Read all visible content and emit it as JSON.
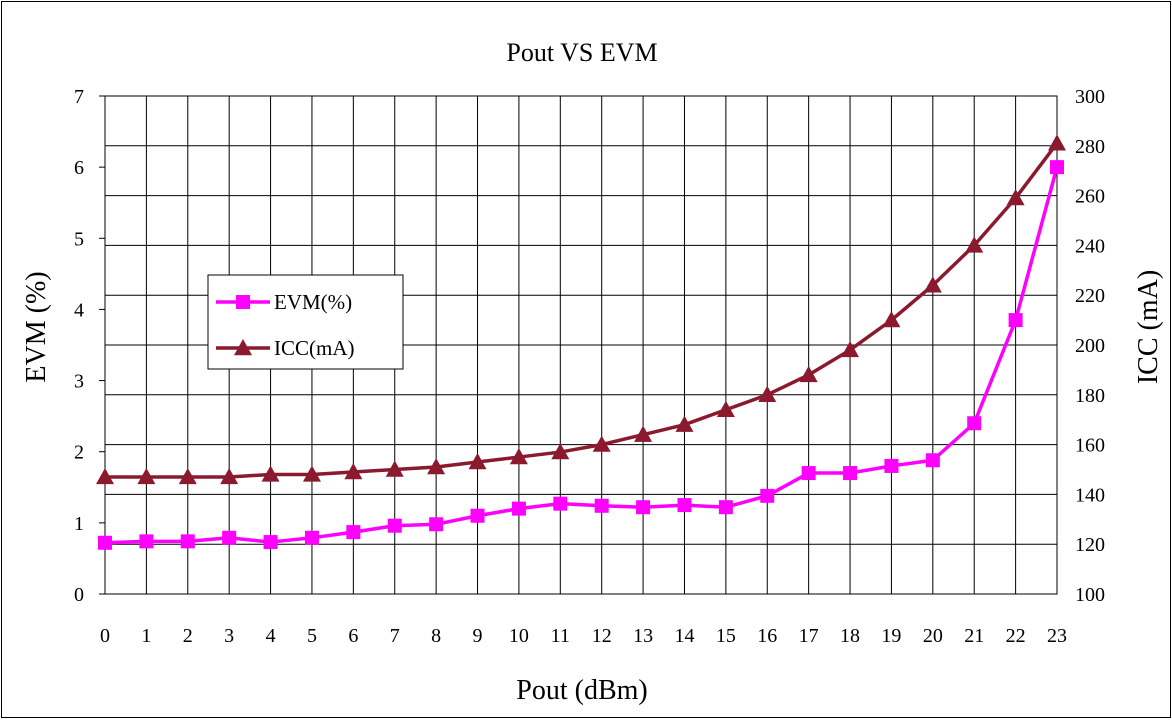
{
  "chart_data": {
    "type": "line",
    "title": "Pout VS EVM",
    "xlabel": "Pout (dBm)",
    "ylabel_left": "EVM (%)",
    "ylabel_right": "ICC (mA)",
    "x": [
      0,
      1,
      2,
      3,
      4,
      5,
      6,
      7,
      8,
      9,
      10,
      11,
      12,
      13,
      14,
      15,
      16,
      17,
      18,
      19,
      20,
      21,
      22,
      23
    ],
    "x_tick_labels": [
      "0",
      "1",
      "2",
      "3",
      "4",
      "5",
      "6",
      "7",
      "8",
      "9",
      "10",
      "11",
      "12",
      "13",
      "14",
      "15",
      "16",
      "17",
      "18",
      "19",
      "20",
      "21",
      "22",
      "23"
    ],
    "ylim_left": [
      0,
      7
    ],
    "ylim_right": [
      100,
      300
    ],
    "y_left_ticks": [
      "0",
      "1",
      "2",
      "3",
      "4",
      "5",
      "6",
      "7"
    ],
    "y_right_ticks": [
      "100",
      "120",
      "140",
      "160",
      "180",
      "200",
      "220",
      "240",
      "260",
      "280",
      "300"
    ],
    "grid": true,
    "legend_position": "center-left",
    "series": [
      {
        "name": "EVM(%)",
        "axis": "left",
        "color": "#ff00ff",
        "marker": "square",
        "values": [
          0.72,
          0.74,
          0.74,
          0.79,
          0.73,
          0.79,
          0.87,
          0.96,
          0.98,
          1.1,
          1.2,
          1.27,
          1.24,
          1.22,
          1.25,
          1.22,
          1.38,
          1.7,
          1.7,
          1.8,
          1.88,
          2.4,
          3.85,
          6.0
        ]
      },
      {
        "name": "ICC(mA)",
        "axis": "right",
        "color": "#8b1a2f",
        "marker": "triangle",
        "values": [
          147,
          147,
          147,
          147,
          148,
          148,
          149,
          150,
          151,
          153,
          155,
          157,
          160,
          164,
          168,
          174,
          180,
          188,
          198,
          210,
          224,
          240,
          259,
          281
        ]
      }
    ]
  }
}
